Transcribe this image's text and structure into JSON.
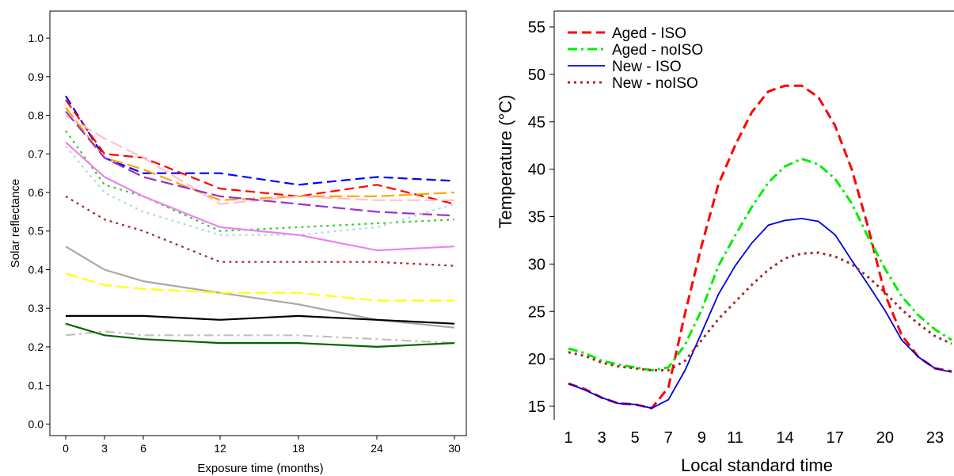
{
  "chart_data": [
    {
      "type": "line",
      "title": "",
      "xlabel": "Exposure time (months)",
      "ylabel": "Solar reflectance",
      "x": [
        0,
        3,
        6,
        12,
        18,
        24,
        30
      ],
      "x_tick_labels": [
        "0",
        "3",
        "6",
        "12",
        "18",
        "24",
        "30"
      ],
      "ylim": [
        -0.03,
        1.07
      ],
      "y_ticks": [
        0.0,
        0.1,
        0.2,
        0.3,
        0.4,
        0.5,
        0.6,
        0.7,
        0.8,
        0.9,
        1.0
      ],
      "y_tick_labels": [
        "0.0",
        "0.1",
        "0.2",
        "0.3",
        "0.4",
        "0.5",
        "0.6",
        "0.7",
        "0.8",
        "0.9",
        "1.0"
      ],
      "grid": false,
      "series": [
        {
          "color": "#0000ff",
          "style": "dashed",
          "values": [
            0.85,
            0.69,
            0.65,
            0.65,
            0.62,
            0.64,
            0.63
          ]
        },
        {
          "color": "#ff0000",
          "style": "dashed",
          "values": [
            0.84,
            0.7,
            0.69,
            0.61,
            0.59,
            0.62,
            0.57
          ]
        },
        {
          "color": "#ffa500",
          "style": "longdash",
          "values": [
            0.82,
            0.69,
            0.66,
            0.58,
            0.59,
            0.59,
            0.6
          ]
        },
        {
          "color": "#ffc0cb",
          "style": "longdash",
          "values": [
            0.8,
            0.74,
            0.69,
            0.57,
            0.59,
            0.58,
            0.58
          ]
        },
        {
          "color": "#9932cc",
          "style": "longdash",
          "values": [
            0.81,
            0.69,
            0.64,
            0.59,
            0.57,
            0.55,
            0.54
          ]
        },
        {
          "color": "#32cd32",
          "style": "dotted",
          "values": [
            0.76,
            0.62,
            0.59,
            0.5,
            0.51,
            0.52,
            0.53
          ]
        },
        {
          "color": "#add8e6",
          "style": "dotted",
          "values": [
            0.72,
            0.6,
            0.55,
            0.49,
            0.49,
            0.51,
            0.57
          ]
        },
        {
          "color": "#ee82ee",
          "style": "solid",
          "values": [
            0.73,
            0.64,
            0.59,
            0.51,
            0.49,
            0.45,
            0.46
          ]
        },
        {
          "color": "#a52a2a",
          "style": "dotted",
          "values": [
            0.59,
            0.53,
            0.5,
            0.42,
            0.42,
            0.42,
            0.41
          ]
        },
        {
          "color": "#a9a9a9",
          "style": "solid",
          "values": [
            0.46,
            0.4,
            0.37,
            0.34,
            0.31,
            0.27,
            0.25
          ]
        },
        {
          "color": "#ffff00",
          "style": "longdash",
          "values": [
            0.39,
            0.36,
            0.35,
            0.34,
            0.34,
            0.32,
            0.32
          ]
        },
        {
          "color": "#000000",
          "style": "solid",
          "values": [
            0.28,
            0.28,
            0.28,
            0.27,
            0.28,
            0.27,
            0.26
          ]
        },
        {
          "color": "#c0c0c0",
          "style": "dashdot",
          "values": [
            0.23,
            0.24,
            0.23,
            0.23,
            0.23,
            0.22,
            0.21
          ]
        },
        {
          "color": "#006400",
          "style": "solid",
          "values": [
            0.26,
            0.23,
            0.22,
            0.21,
            0.21,
            0.2,
            0.21
          ]
        }
      ]
    },
    {
      "type": "line",
      "title": "",
      "xlabel": "Local standard time",
      "ylabel": "Temperature (°C)",
      "x": [
        1,
        2,
        3,
        4,
        5,
        6,
        7,
        8,
        9,
        10,
        11,
        12,
        13,
        14,
        15,
        16,
        17,
        18,
        19,
        20,
        21,
        22,
        23,
        24
      ],
      "x_ticks": [
        1,
        3,
        5,
        7,
        9,
        11,
        14,
        17,
        20,
        23
      ],
      "x_tick_labels": [
        "1",
        "3",
        "5",
        "7",
        "9",
        "11",
        "14",
        "17",
        "20",
        "23"
      ],
      "xlim": [
        0.6,
        24.1
      ],
      "ylim": [
        14,
        57
      ],
      "y_ticks": [
        15,
        20,
        25,
        30,
        35,
        40,
        45,
        50,
        55
      ],
      "y_tick_labels": [
        "15",
        "20",
        "25",
        "30",
        "35",
        "40",
        "45",
        "50",
        "55"
      ],
      "grid": false,
      "legend_position": "top-left",
      "series": [
        {
          "name": "Aged - ISO",
          "color": "#ff0000",
          "style": "dashed",
          "values": [
            17.4,
            16.8,
            15.9,
            15.3,
            15.2,
            14.8,
            17.0,
            24.8,
            32.0,
            38.4,
            42.5,
            46.0,
            48.2,
            48.8,
            48.8,
            47.6,
            44.6,
            40.0,
            33.8,
            26.8,
            22.5,
            20.2,
            19.0,
            18.7
          ]
        },
        {
          "name": "Aged - noISO",
          "color": "#00ee00",
          "style": "dashdot",
          "values": [
            21.1,
            20.6,
            19.8,
            19.4,
            19.1,
            18.8,
            19.1,
            21.5,
            25.2,
            29.8,
            33.0,
            36.0,
            38.6,
            40.3,
            41.1,
            40.5,
            39.0,
            36.4,
            32.8,
            29.5,
            26.6,
            24.6,
            23.1,
            22.0
          ]
        },
        {
          "name": "New - ISO",
          "color": "#0000dd",
          "style": "solid",
          "values": [
            17.4,
            16.7,
            15.9,
            15.3,
            15.2,
            14.8,
            15.7,
            18.8,
            22.8,
            26.8,
            29.8,
            32.2,
            34.1,
            34.6,
            34.8,
            34.5,
            33.1,
            30.4,
            27.8,
            25.1,
            22.0,
            20.2,
            19.0,
            18.6
          ]
        },
        {
          "name": "New - noISO",
          "color": "#a52a2a",
          "style": "dotted",
          "values": [
            20.7,
            20.3,
            19.6,
            19.2,
            19.0,
            18.8,
            18.8,
            19.8,
            22.0,
            24.2,
            26.0,
            27.8,
            29.4,
            30.6,
            31.1,
            31.2,
            30.8,
            30.0,
            28.6,
            27.0,
            25.2,
            23.7,
            22.4,
            21.6
          ]
        }
      ]
    }
  ]
}
